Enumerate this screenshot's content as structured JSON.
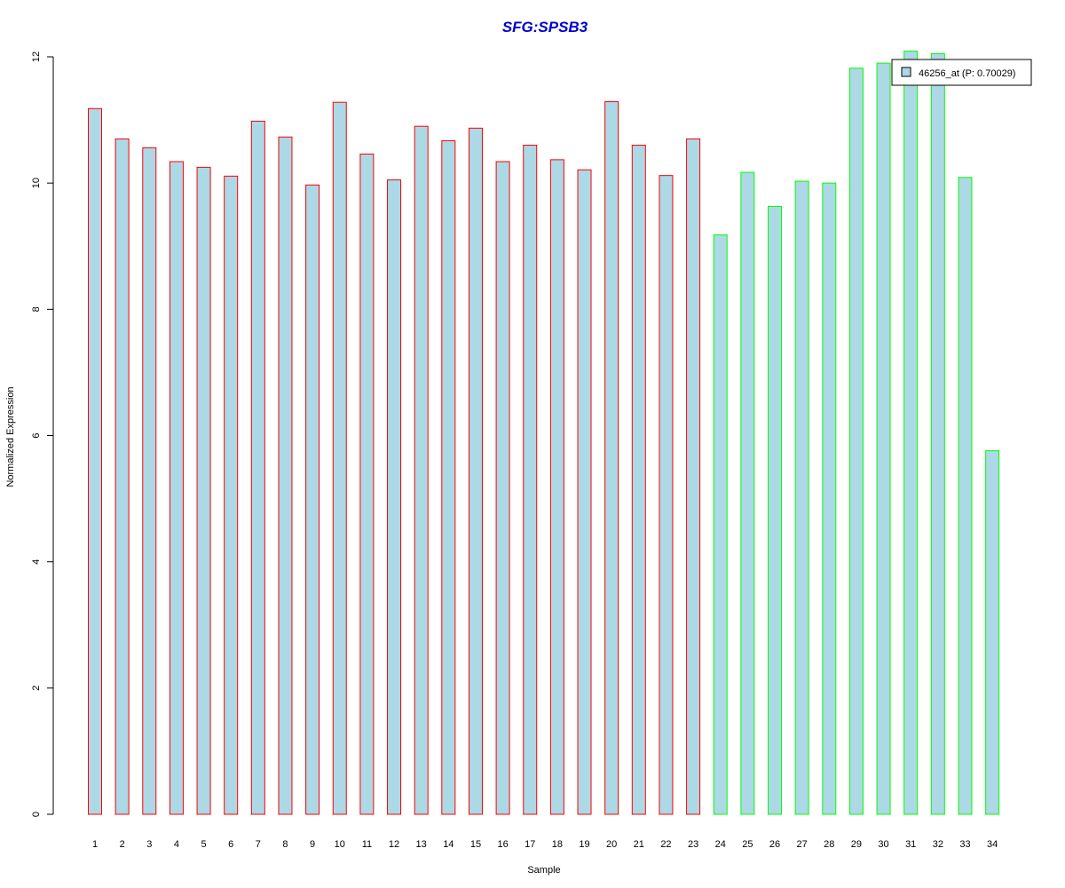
{
  "chart_data": {
    "type": "bar",
    "title": "SFG:SPSB3",
    "xlabel": "Sample",
    "ylabel": "Normalized Expression",
    "ylim": [
      0,
      12
    ],
    "yticks": [
      0,
      2,
      4,
      6,
      8,
      10,
      12
    ],
    "categories": [
      "1",
      "2",
      "3",
      "4",
      "5",
      "6",
      "7",
      "8",
      "9",
      "10",
      "11",
      "12",
      "13",
      "14",
      "15",
      "16",
      "17",
      "18",
      "19",
      "20",
      "21",
      "22",
      "23",
      "24",
      "25",
      "26",
      "27",
      "28",
      "29",
      "30",
      "31",
      "32",
      "33",
      "34"
    ],
    "values": [
      11.18,
      10.7,
      10.56,
      10.34,
      10.25,
      10.11,
      10.98,
      10.73,
      9.97,
      11.28,
      10.46,
      10.05,
      10.9,
      10.67,
      10.87,
      10.34,
      10.6,
      10.37,
      10.21,
      11.29,
      10.6,
      10.12,
      10.7,
      9.18,
      10.17,
      9.63,
      10.03,
      10.0,
      11.82,
      11.9,
      12.09,
      12.05,
      10.09,
      5.76
    ],
    "groups": [
      "red",
      "red",
      "red",
      "red",
      "red",
      "red",
      "red",
      "red",
      "red",
      "red",
      "red",
      "red",
      "red",
      "red",
      "red",
      "red",
      "red",
      "red",
      "red",
      "red",
      "red",
      "red",
      "red",
      "green",
      "green",
      "green",
      "green",
      "green",
      "green",
      "green",
      "green",
      "green",
      "green",
      "green"
    ],
    "colors": {
      "fill": "#add8e6",
      "red": "#ff0000",
      "green": "#00ff00",
      "title": "#0000cc"
    },
    "legend": {
      "position": "top-right",
      "entries": [
        "46256_at (P: 0.70029)"
      ]
    },
    "grid": false
  }
}
